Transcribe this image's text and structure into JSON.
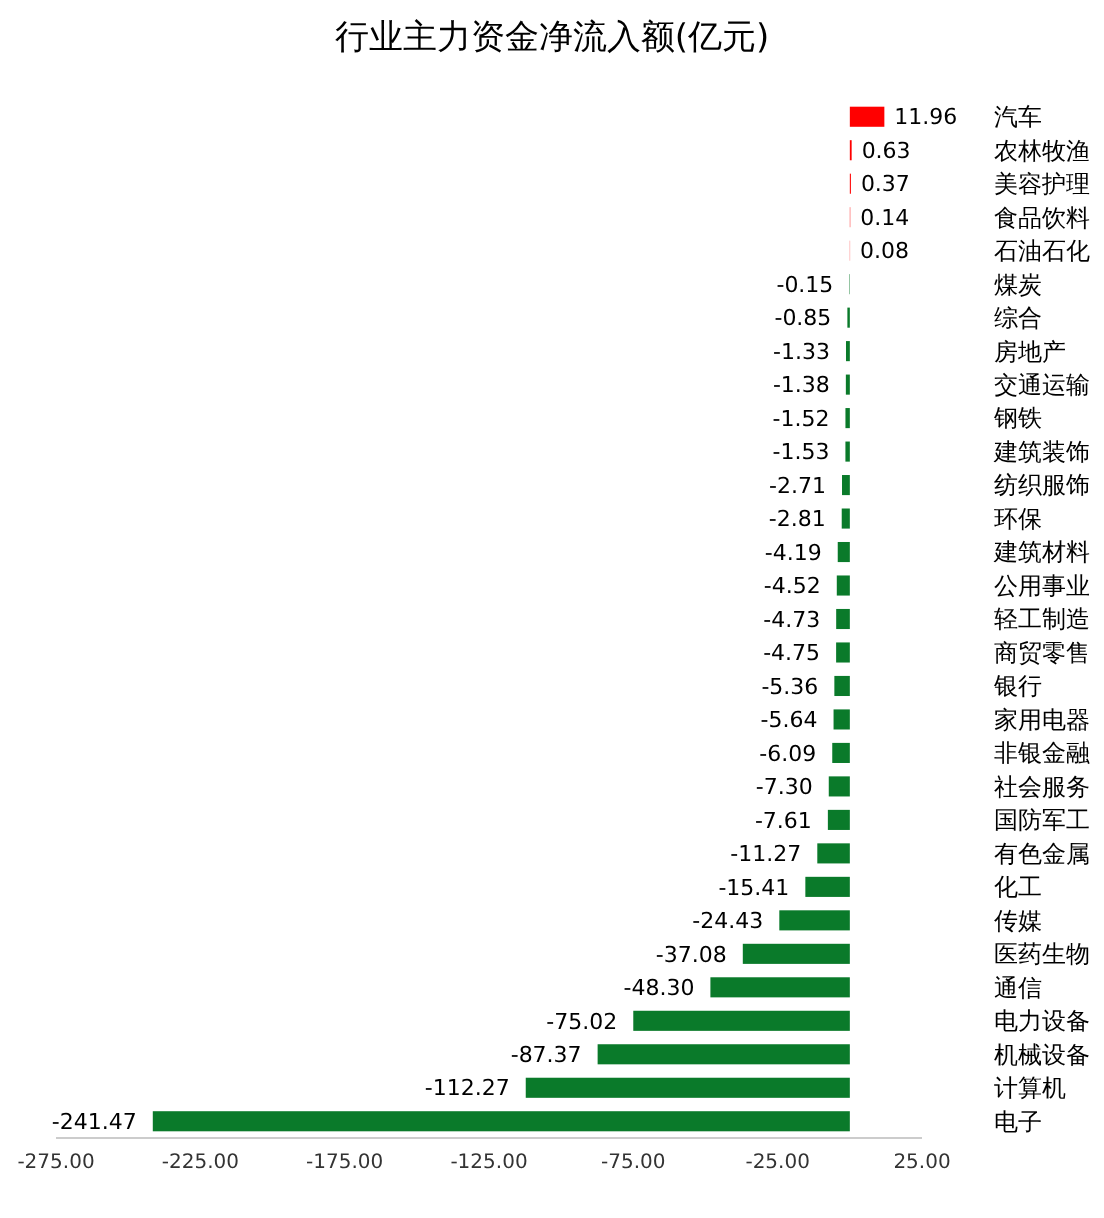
{
  "chart_data": {
    "type": "bar",
    "orientation": "horizontal",
    "title": "行业主力资金净流入额(亿元)",
    "categories": [
      "汽车",
      "农林牧渔",
      "美容护理",
      "食品饮料",
      "石油石化",
      "煤炭",
      "综合",
      "房地产",
      "交通运输",
      "钢铁",
      "建筑装饰",
      "纺织服饰",
      "环保",
      "建筑材料",
      "公用事业",
      "轻工制造",
      "商贸零售",
      "银行",
      "家用电器",
      "非银金融",
      "社会服务",
      "国防军工",
      "有色金属",
      "化工",
      "传媒",
      "医药生物",
      "通信",
      "电力设备",
      "机械设备",
      "计算机",
      "电子"
    ],
    "values": [
      11.96,
      0.63,
      0.37,
      0.14,
      0.08,
      -0.15,
      -0.85,
      -1.33,
      -1.38,
      -1.52,
      -1.53,
      -2.71,
      -2.81,
      -4.19,
      -4.52,
      -4.73,
      -4.75,
      -5.36,
      -5.64,
      -6.09,
      -7.3,
      -7.61,
      -11.27,
      -15.41,
      -24.43,
      -37.08,
      -48.3,
      -75.02,
      -87.37,
      -112.27,
      -241.47
    ],
    "value_labels": [
      "11.96",
      "0.63",
      "0.37",
      "0.14",
      "0.08",
      "-0.15",
      "-0.85",
      "-1.33",
      "-1.38",
      "-1.52",
      "-1.53",
      "-2.71",
      "-2.81",
      "-4.19",
      "-4.52",
      "-4.73",
      "-4.75",
      "-5.36",
      "-5.64",
      "-6.09",
      "-7.30",
      "-7.61",
      "-11.27",
      "-15.41",
      "-24.43",
      "-37.08",
      "-48.30",
      "-75.02",
      "-87.37",
      "-112.27",
      "-241.47"
    ],
    "colors": [
      "#ff0000",
      "#ff0000",
      "#ff0000",
      "#ff0000",
      "#ff0000",
      "#0a7a2a",
      "#0a7a2a",
      "#0a7a2a",
      "#0a7a2a",
      "#0a7a2a",
      "#0a7a2a",
      "#0a7a2a",
      "#0a7a2a",
      "#0a7a2a",
      "#0a7a2a",
      "#0a7a2a",
      "#0a7a2a",
      "#0a7a2a",
      "#0a7a2a",
      "#0a7a2a",
      "#0a7a2a",
      "#0a7a2a",
      "#0a7a2a",
      "#0a7a2a",
      "#0a7a2a",
      "#0a7a2a",
      "#0a7a2a",
      "#0a7a2a",
      "#0a7a2a",
      "#0a7a2a",
      "#0a7a2a"
    ],
    "xlim": [
      -275,
      25
    ],
    "xticks": [
      {
        "value": -275,
        "label": "-275.00"
      },
      {
        "value": -225,
        "label": "-225.00"
      },
      {
        "value": -175,
        "label": "-175.00"
      },
      {
        "value": -125,
        "label": "-125.00"
      },
      {
        "value": -75,
        "label": "-75.00"
      },
      {
        "value": -25,
        "label": "-25.00"
      },
      {
        "value": 25,
        "label": "25.00"
      }
    ],
    "grid": false
  }
}
